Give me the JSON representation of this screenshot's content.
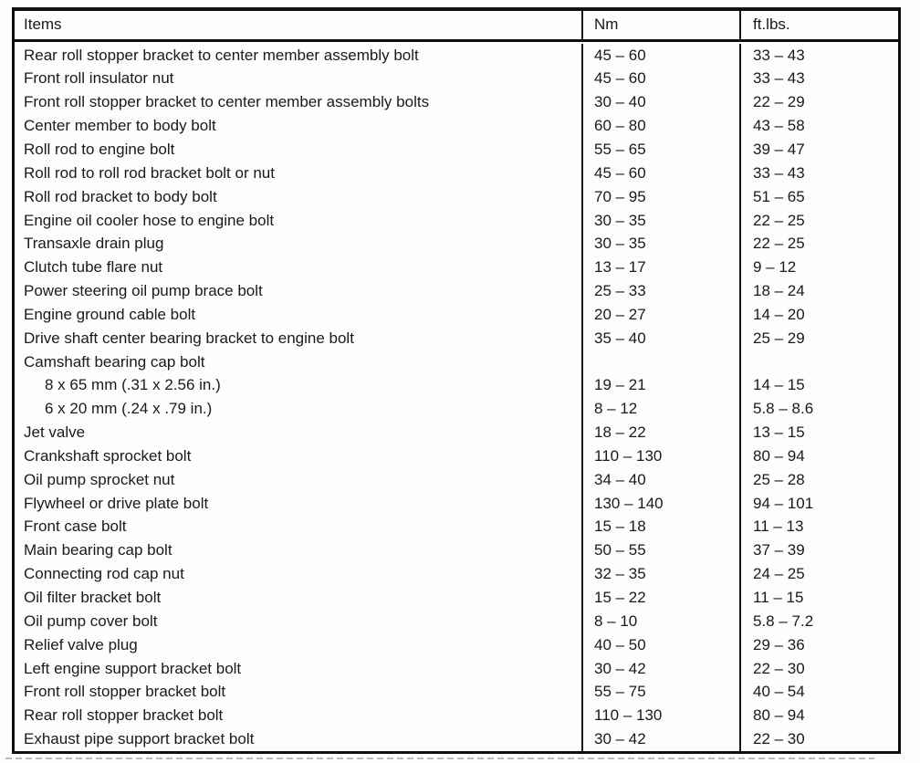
{
  "colors": {
    "background": "#fcfcfc",
    "text": "#1a1a1a",
    "border": "#101010"
  },
  "table": {
    "headers": [
      "Items",
      "Nm",
      "ft.lbs."
    ],
    "rows": [
      {
        "item": "Rear roll stopper bracket to center member assembly bolt",
        "nm": "45 – 60",
        "ftlbs": "33 – 43",
        "indent": false
      },
      {
        "item": "Front roll insulator nut",
        "nm": "45 – 60",
        "ftlbs": "33 – 43",
        "indent": false
      },
      {
        "item": "Front roll stopper bracket to center member assembly bolts",
        "nm": "30 – 40",
        "ftlbs": "22 – 29",
        "indent": false
      },
      {
        "item": "Center member to body bolt",
        "nm": "60 – 80",
        "ftlbs": "43 – 58",
        "indent": false
      },
      {
        "item": "Roll rod to engine bolt",
        "nm": "55 – 65",
        "ftlbs": "39 – 47",
        "indent": false
      },
      {
        "item": "Roll rod to roll rod bracket bolt or nut",
        "nm": "45 – 60",
        "ftlbs": "33 – 43",
        "indent": false
      },
      {
        "item": "Roll rod bracket to body bolt",
        "nm": "70 – 95",
        "ftlbs": "51 – 65",
        "indent": false
      },
      {
        "item": "Engine oil cooler hose to engine bolt",
        "nm": "30 – 35",
        "ftlbs": "22 – 25",
        "indent": false
      },
      {
        "item": "Transaxle drain plug",
        "nm": "30 – 35",
        "ftlbs": "22 – 25",
        "indent": false
      },
      {
        "item": "Clutch tube flare nut",
        "nm": "13 – 17",
        "ftlbs": "9 – 12",
        "indent": false
      },
      {
        "item": "Power steering oil pump brace bolt",
        "nm": "25 – 33",
        "ftlbs": "18 – 24",
        "indent": false
      },
      {
        "item": "Engine ground cable bolt",
        "nm": "20 – 27",
        "ftlbs": "14 – 20",
        "indent": false
      },
      {
        "item": "Drive shaft center bearing bracket to engine bolt",
        "nm": "35 – 40",
        "ftlbs": "25 – 29",
        "indent": false
      },
      {
        "item": "Camshaft bearing cap bolt",
        "nm": "",
        "ftlbs": "",
        "indent": false
      },
      {
        "item": "8 x 65 mm (.31 x 2.56 in.)",
        "nm": "19 – 21",
        "ftlbs": "14 – 15",
        "indent": true
      },
      {
        "item": "6 x 20 mm (.24 x .79 in.)",
        "nm": "8 – 12",
        "ftlbs": "5.8 – 8.6",
        "indent": true
      },
      {
        "item": "Jet valve",
        "nm": "18 – 22",
        "ftlbs": "13 – 15",
        "indent": false
      },
      {
        "item": "Crankshaft sprocket bolt",
        "nm": "110 – 130",
        "ftlbs": "80 – 94",
        "indent": false
      },
      {
        "item": "Oil pump sprocket nut",
        "nm": "34 – 40",
        "ftlbs": "25 – 28",
        "indent": false
      },
      {
        "item": "Flywheel or drive plate bolt",
        "nm": "130 – 140",
        "ftlbs": "94 – 101",
        "indent": false
      },
      {
        "item": "Front case bolt",
        "nm": "15 – 18",
        "ftlbs": "11 – 13",
        "indent": false
      },
      {
        "item": "Main bearing cap bolt",
        "nm": "50 – 55",
        "ftlbs": "37 – 39",
        "indent": false
      },
      {
        "item": "Connecting rod cap nut",
        "nm": "32 – 35",
        "ftlbs": "24 – 25",
        "indent": false
      },
      {
        "item": "Oil filter bracket bolt",
        "nm": "15 – 22",
        "ftlbs": "11 – 15",
        "indent": false
      },
      {
        "item": "Oil pump cover bolt",
        "nm": "8 – 10",
        "ftlbs": "5.8 – 7.2",
        "indent": false
      },
      {
        "item": "Relief valve plug",
        "nm": "40 – 50",
        "ftlbs": "29 – 36",
        "indent": false
      },
      {
        "item": "Left engine support bracket bolt",
        "nm": "30 – 42",
        "ftlbs": "22 – 30",
        "indent": false
      },
      {
        "item": "Front roll stopper bracket bolt",
        "nm": "55 – 75",
        "ftlbs": "40 – 54",
        "indent": false
      },
      {
        "item": "Rear roll stopper bracket bolt",
        "nm": "110 – 130",
        "ftlbs": "80 – 94",
        "indent": false
      },
      {
        "item": "Exhaust pipe support bracket bolt",
        "nm": "30 – 42",
        "ftlbs": "22 – 30",
        "indent": false
      }
    ]
  }
}
